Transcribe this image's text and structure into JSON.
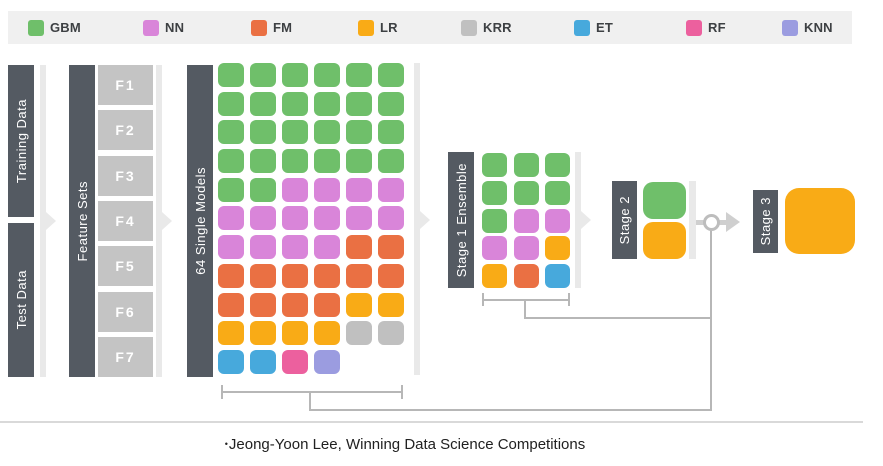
{
  "colors": {
    "GBM": "#6fbf6a",
    "NN": "#d985d9",
    "FM": "#ea7043",
    "LR": "#f9ab16",
    "KRR": "#c0c0c0",
    "ET": "#47a9dc",
    "RF": "#ec609e",
    "KNN": "#9b9ce0",
    "dark_bar": "#545a62",
    "feature_box": "#c4c4c4",
    "flow_bar": "#e9e9e9",
    "connector": "#b7b7b7",
    "legend_bg": "#f0f0f0"
  },
  "legend": {
    "items": [
      {
        "label": "GBM",
        "model": "GBM"
      },
      {
        "label": "NN",
        "model": "NN"
      },
      {
        "label": "FM",
        "model": "FM"
      },
      {
        "label": "LR",
        "model": "LR"
      },
      {
        "label": "KRR",
        "model": "KRR"
      },
      {
        "label": "ET",
        "model": "ET"
      },
      {
        "label": "RF",
        "model": "RF"
      },
      {
        "label": "KNN",
        "model": "KNN"
      }
    ]
  },
  "pipeline": {
    "training_data_label": "Training Data",
    "test_data_label": "Test Data",
    "feature_sets_label": "Feature Sets",
    "feature_sets": [
      "F1",
      "F2",
      "F3",
      "F4",
      "F5",
      "F6",
      "F7"
    ],
    "single_models_label": "64 Single Models",
    "single_models_grid": [
      [
        "GBM",
        "GBM",
        "GBM",
        "GBM",
        "GBM",
        "GBM"
      ],
      [
        "GBM",
        "GBM",
        "GBM",
        "GBM",
        "GBM",
        "GBM"
      ],
      [
        "GBM",
        "GBM",
        "GBM",
        "GBM",
        "GBM",
        "GBM"
      ],
      [
        "GBM",
        "GBM",
        "GBM",
        "GBM",
        "GBM",
        "GBM"
      ],
      [
        "GBM",
        "GBM",
        "NN",
        "NN",
        "NN",
        "NN"
      ],
      [
        "NN",
        "NN",
        "NN",
        "NN",
        "NN",
        "NN"
      ],
      [
        "NN",
        "NN",
        "NN",
        "NN",
        "FM",
        "FM"
      ],
      [
        "FM",
        "FM",
        "FM",
        "FM",
        "FM",
        "FM"
      ],
      [
        "FM",
        "FM",
        "FM",
        "FM",
        "LR",
        "LR"
      ],
      [
        "LR",
        "LR",
        "LR",
        "LR",
        "KRR",
        "KRR"
      ],
      [
        "ET",
        "ET",
        "RF",
        "KNN"
      ]
    ],
    "stage1_label": "Stage 1 Ensemble",
    "stage1_grid": [
      [
        "GBM",
        "GBM",
        "GBM"
      ],
      [
        "GBM",
        "GBM",
        "GBM"
      ],
      [
        "GBM",
        "NN",
        "NN"
      ],
      [
        "NN",
        "NN",
        "LR"
      ],
      [
        "LR",
        "FM",
        "ET"
      ]
    ],
    "stage2_label": "Stage 2",
    "stage2_models": [
      "GBM",
      "LR"
    ],
    "stage3_label": "Stage 3",
    "stage3_model": "LR"
  },
  "caption": {
    "bullet": "•",
    "text": "Jeong-Yoon Lee, Winning Data Science Competitions"
  }
}
